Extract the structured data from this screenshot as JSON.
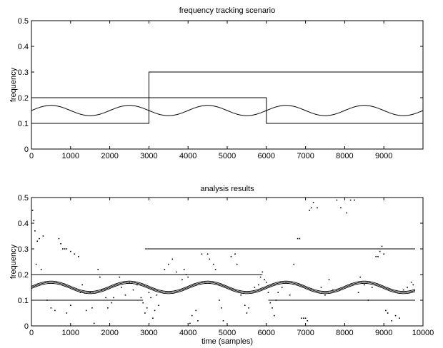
{
  "chart_data": [
    {
      "type": "line",
      "title": "frequency tracking scenario",
      "xlabel": "",
      "ylabel": "frequency",
      "xlim": [
        0,
        10000
      ],
      "ylim": [
        0,
        0.5
      ],
      "xticks": [
        0,
        1000,
        2000,
        3000,
        4000,
        5000,
        6000,
        7000,
        8000,
        9000
      ],
      "yticks": [
        0,
        0.1,
        0.2,
        0.3,
        0.4,
        0.5
      ],
      "grid": false,
      "series": [
        {
          "points": [
            [
              0,
              0.1
            ],
            [
              3000,
              0.1
            ],
            [
              3000,
              0.3
            ],
            [
              10000,
              0.3
            ]
          ]
        },
        {
          "points": [
            [
              0,
              0.2
            ],
            [
              6000,
              0.2
            ],
            [
              6000,
              0.1
            ],
            [
              10000,
              0.1
            ]
          ]
        },
        {
          "sine": {
            "center": 0.15,
            "amplitude": 0.02,
            "period": 2000,
            "x_from": 0,
            "x_to": 10000
          }
        }
      ]
    },
    {
      "type": "scatter",
      "title": "analysis results",
      "xlabel": "time (samples)",
      "ylabel": "frequency",
      "xlim": [
        0,
        10000
      ],
      "ylim": [
        0,
        0.5
      ],
      "xticks": [
        0,
        1000,
        2000,
        3000,
        4000,
        5000,
        6000,
        7000,
        8000,
        9000,
        10000
      ],
      "yticks": [
        0,
        0.1,
        0.2,
        0.3,
        0.4,
        0.5
      ],
      "grid": false,
      "tracks": [
        {
          "points": [
            [
              0,
              0.1
            ],
            [
              2850,
              0.1
            ]
          ]
        },
        {
          "points": [
            [
              0,
              0.2
            ],
            [
              5900,
              0.2
            ]
          ]
        },
        {
          "points": [
            [
              2900,
              0.3
            ],
            [
              9800,
              0.3
            ]
          ]
        },
        {
          "points": [
            [
              6050,
              0.1
            ],
            [
              9800,
              0.1
            ]
          ]
        },
        {
          "sine": {
            "center": 0.15,
            "amplitude": 0.02,
            "period": 2000,
            "x_from": 0,
            "x_to": 9800
          }
        }
      ],
      "points": [
        [
          30,
          0.45
        ],
        [
          60,
          0.41
        ],
        [
          90,
          0.37
        ],
        [
          150,
          0.33
        ],
        [
          200,
          0.34
        ],
        [
          300,
          0.35
        ],
        [
          120,
          0.24
        ],
        [
          250,
          0.22
        ],
        [
          700,
          0.34
        ],
        [
          750,
          0.32
        ],
        [
          800,
          0.3
        ],
        [
          850,
          0.3
        ],
        [
          900,
          0.3
        ],
        [
          1000,
          0.29
        ],
        [
          1100,
          0.28
        ],
        [
          1200,
          0.27
        ],
        [
          400,
          0.1
        ],
        [
          500,
          0.07
        ],
        [
          600,
          0.06
        ],
        [
          900,
          0.05
        ],
        [
          1000,
          0.08
        ],
        [
          1250,
          0.13
        ],
        [
          1300,
          0.16
        ],
        [
          1400,
          0.06
        ],
        [
          1500,
          0.13
        ],
        [
          1550,
          0.07
        ],
        [
          1600,
          0.01
        ],
        [
          1700,
          0.22
        ],
        [
          1750,
          0.19
        ],
        [
          1800,
          0.14
        ],
        [
          1900,
          0.11
        ],
        [
          1950,
          0.07
        ],
        [
          2050,
          0.09
        ],
        [
          2100,
          0.11
        ],
        [
          2250,
          0.19
        ],
        [
          2300,
          0.15
        ],
        [
          2400,
          0.12
        ],
        [
          2500,
          0.17
        ],
        [
          2600,
          0.14
        ],
        [
          2700,
          0.16
        ],
        [
          2800,
          0.11
        ],
        [
          2850,
          0.09
        ],
        [
          2900,
          0.05
        ],
        [
          2950,
          0.07
        ],
        [
          3000,
          0.13
        ],
        [
          3050,
          0.11
        ],
        [
          3100,
          0.03
        ],
        [
          3150,
          0.06
        ],
        [
          3200,
          0.12
        ],
        [
          3250,
          0.08
        ],
        [
          3400,
          0.22
        ],
        [
          3500,
          0.24
        ],
        [
          3600,
          0.26
        ],
        [
          3700,
          0.21
        ],
        [
          3850,
          0.18
        ],
        [
          3900,
          0.22
        ],
        [
          3950,
          0.2
        ],
        [
          4000,
          0.19
        ],
        [
          4050,
          0.01
        ],
        [
          4100,
          0.04
        ],
        [
          4200,
          0.06
        ],
        [
          4250,
          0.02
        ],
        [
          4350,
          0.28
        ],
        [
          4500,
          0.28
        ],
        [
          4550,
          0.26
        ],
        [
          4650,
          0.24
        ],
        [
          4700,
          0.22
        ],
        [
          4800,
          0.1
        ],
        [
          4850,
          0.07
        ],
        [
          4900,
          0.02
        ],
        [
          5100,
          0.27
        ],
        [
          5200,
          0.28
        ],
        [
          5250,
          0.24
        ],
        [
          5350,
          0.12
        ],
        [
          5450,
          0.08
        ],
        [
          5500,
          0.05
        ],
        [
          5550,
          0.07
        ],
        [
          5700,
          0.15
        ],
        [
          5800,
          0.16
        ],
        [
          5850,
          0.19
        ],
        [
          5900,
          0.21
        ],
        [
          5950,
          0.18
        ],
        [
          6000,
          0.17
        ],
        [
          6050,
          0.13
        ],
        [
          6100,
          0.09
        ],
        [
          6150,
          0.07
        ],
        [
          6200,
          0.04
        ],
        [
          6250,
          0.1
        ],
        [
          6300,
          0.13
        ],
        [
          6400,
          0.15
        ],
        [
          6500,
          0.17
        ],
        [
          6600,
          0.12
        ],
        [
          6700,
          0.24
        ],
        [
          6800,
          0.34
        ],
        [
          6850,
          0.34
        ],
        [
          6900,
          0.03
        ],
        [
          6950,
          0.03
        ],
        [
          7000,
          0.03
        ],
        [
          7050,
          0.02
        ],
        [
          7100,
          0.45
        ],
        [
          7150,
          0.46
        ],
        [
          7200,
          0.48
        ],
        [
          7300,
          0.46
        ],
        [
          7400,
          0.15
        ],
        [
          7500,
          0.12
        ],
        [
          7600,
          0.18
        ],
        [
          7700,
          0.14
        ],
        [
          7800,
          0.49
        ],
        [
          7900,
          0.46
        ],
        [
          8050,
          0.44
        ],
        [
          8150,
          0.49
        ],
        [
          8250,
          0.49
        ],
        [
          8350,
          0.13
        ],
        [
          8400,
          0.19
        ],
        [
          8500,
          0.16
        ],
        [
          8600,
          0.1
        ],
        [
          8700,
          0.15
        ],
        [
          8800,
          0.27
        ],
        [
          8850,
          0.27
        ],
        [
          8900,
          0.29
        ],
        [
          8950,
          0.31
        ],
        [
          9000,
          0.28
        ],
        [
          9050,
          0.06
        ],
        [
          9100,
          0.05
        ],
        [
          9200,
          0.02
        ],
        [
          9300,
          0.04
        ],
        [
          9400,
          0.03
        ],
        [
          9500,
          0.14
        ],
        [
          9600,
          0.15
        ],
        [
          9700,
          0.17
        ],
        [
          9750,
          0.16
        ]
      ]
    }
  ]
}
